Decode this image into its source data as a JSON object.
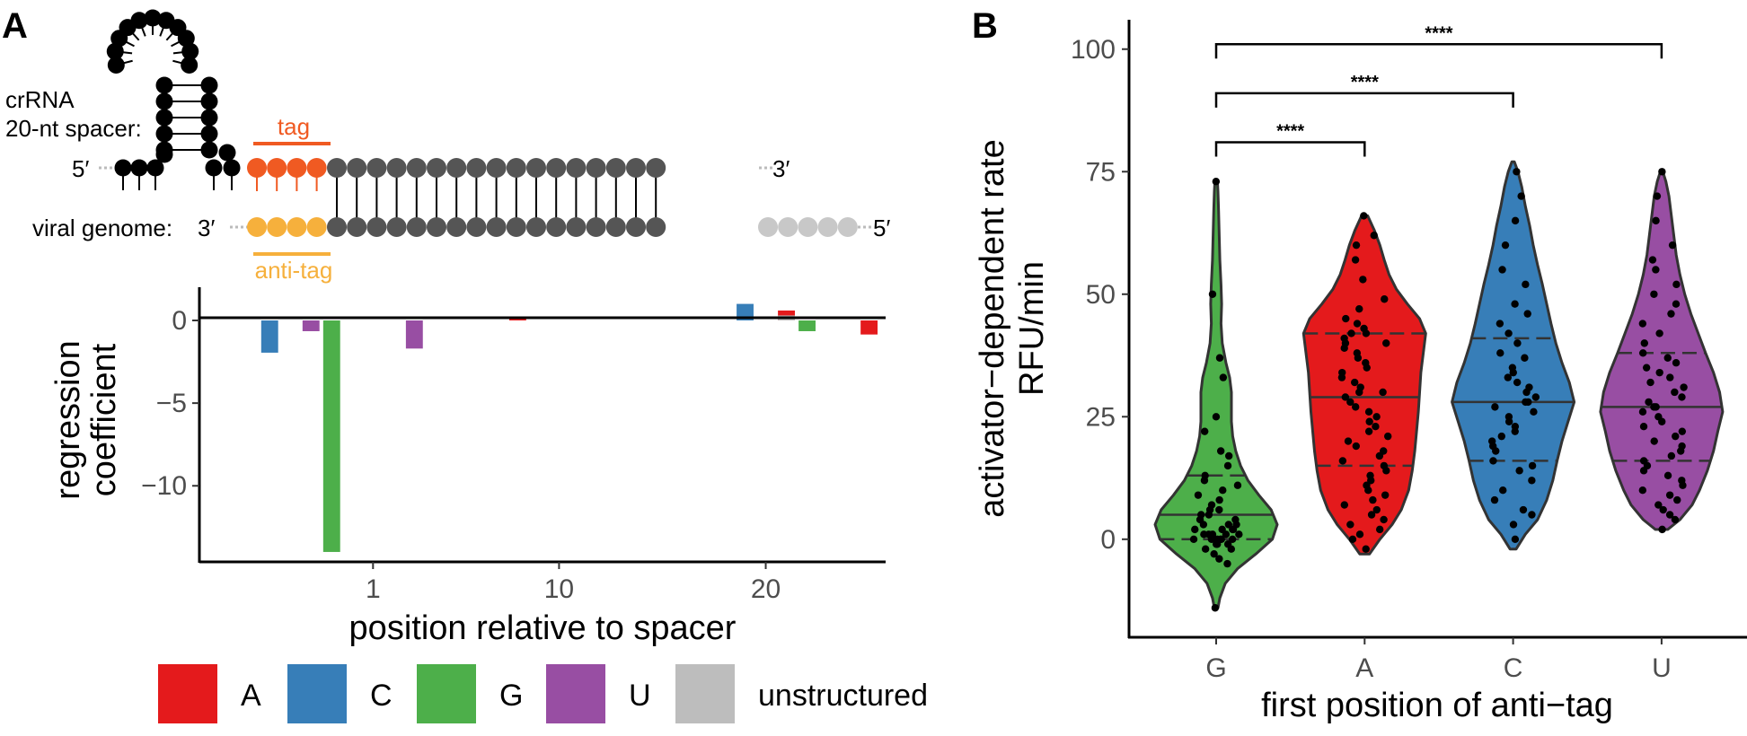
{
  "panel_a": {
    "letter": "A",
    "diagram": {
      "crrna_label_1": "crRNA",
      "crrna_label_2": "20-nt spacer:",
      "five_prime_top": "5′",
      "three_prime_top": "3′",
      "viral_label": "viral genome:",
      "three_prime_bottom": "3′",
      "five_prime_bottom": "5′",
      "tag_label": "tag",
      "anti_tag_label": "anti-tag",
      "colors": {
        "crrna": "#000000",
        "tag": "#F05A22",
        "anti_tag": "#F6B03C",
        "spacer": "#555555",
        "unpaired": "#C8C8C8"
      }
    }
  },
  "panel_b": {
    "letter": "B"
  },
  "chart_data": [
    {
      "type": "bar",
      "xlabel": "position relative to spacer",
      "ylabel_lines": [
        "regression",
        "coefficient"
      ],
      "x_ticks": [
        1,
        10,
        20
      ],
      "y_ticks": [
        0,
        -5,
        -10
      ],
      "ylim": [
        -14.6,
        1.9
      ],
      "xlim": [
        -7.4,
        25.8
      ],
      "bars": [
        {
          "x": -4,
          "value": -1.95,
          "series": "C"
        },
        {
          "x": -2,
          "value": -0.65,
          "series": "U"
        },
        {
          "x": -1,
          "value": -14.0,
          "series": "G"
        },
        {
          "x": 3,
          "value": -1.7,
          "series": "U"
        },
        {
          "x": 8,
          "value": 0.15,
          "series": "A"
        },
        {
          "x": 19,
          "value": 1.0,
          "series": "C"
        },
        {
          "x": 21,
          "value": 0.6,
          "series": "A"
        },
        {
          "x": 21,
          "value": 0.3,
          "series": "unstructured"
        },
        {
          "x": 22,
          "value": -0.65,
          "series": "G"
        },
        {
          "x": 25,
          "value": -0.85,
          "series": "A"
        }
      ],
      "legend": [
        {
          "name": "A",
          "color": "#E41A1C"
        },
        {
          "name": "C",
          "color": "#377EB8"
        },
        {
          "name": "G",
          "color": "#4DAF4A"
        },
        {
          "name": "U",
          "color": "#984EA3"
        },
        {
          "name": "unstructured",
          "color": "#BDBDBD"
        }
      ],
      "legend_placement": "bottom",
      "grid": false
    },
    {
      "type": "violin",
      "xlabel": "first position of anti−tag",
      "ylabel_lines": [
        "activator−dependent rate",
        "RFU/min"
      ],
      "categories": [
        "G",
        "A",
        "C",
        "U"
      ],
      "colors": [
        "#4DAF4A",
        "#E41A1C",
        "#377EB8",
        "#984EA3"
      ],
      "y_ticks": [
        0,
        25,
        50,
        75,
        100
      ],
      "ylim": [
        -20,
        106
      ],
      "grid": false,
      "groups": [
        {
          "name": "G",
          "min": -14,
          "max": 73,
          "q1": 0,
          "median": 5,
          "q3": 13,
          "density": [
            [
              -14,
              0.03
            ],
            [
              -12,
              0.06
            ],
            [
              -9,
              0.15
            ],
            [
              -6,
              0.35
            ],
            [
              -3,
              0.65
            ],
            [
              0,
              0.92
            ],
            [
              3,
              1.0
            ],
            [
              6,
              0.9
            ],
            [
              9,
              0.7
            ],
            [
              12,
              0.52
            ],
            [
              15,
              0.4
            ],
            [
              18,
              0.32
            ],
            [
              21,
              0.27
            ],
            [
              24,
              0.25
            ],
            [
              27,
              0.25
            ],
            [
              30,
              0.25
            ],
            [
              33,
              0.22
            ],
            [
              36,
              0.16
            ],
            [
              40,
              0.1
            ],
            [
              44,
              0.08
            ],
            [
              48,
              0.09
            ],
            [
              52,
              0.08
            ],
            [
              57,
              0.06
            ],
            [
              62,
              0.05
            ],
            [
              67,
              0.04
            ],
            [
              71,
              0.03
            ],
            [
              73,
              0.02
            ]
          ],
          "points": [
            -14,
            -5,
            -4,
            -3,
            -2,
            -2,
            -1,
            -1,
            -1,
            0,
            0,
            0,
            0,
            0,
            0,
            1,
            1,
            1,
            1,
            1,
            2,
            2,
            2,
            2,
            3,
            3,
            3,
            4,
            4,
            5,
            5,
            6,
            6,
            7,
            8,
            9,
            10,
            11,
            12,
            13,
            15,
            17,
            18,
            22,
            25,
            33,
            37,
            50,
            73
          ]
        },
        {
          "name": "A",
          "min": -3,
          "max": 66,
          "q1": 15,
          "median": 29,
          "q3": 42,
          "density": [
            [
              -3,
              0.08
            ],
            [
              0,
              0.25
            ],
            [
              3,
              0.45
            ],
            [
              6,
              0.6
            ],
            [
              10,
              0.72
            ],
            [
              14,
              0.78
            ],
            [
              18,
              0.82
            ],
            [
              22,
              0.85
            ],
            [
              26,
              0.88
            ],
            [
              30,
              0.9
            ],
            [
              34,
              0.92
            ],
            [
              38,
              0.96
            ],
            [
              42,
              1.0
            ],
            [
              45,
              0.9
            ],
            [
              48,
              0.7
            ],
            [
              51,
              0.52
            ],
            [
              54,
              0.4
            ],
            [
              57,
              0.32
            ],
            [
              60,
              0.25
            ],
            [
              63,
              0.16
            ],
            [
              66,
              0.05
            ]
          ],
          "points": [
            -2,
            0,
            1,
            2,
            3,
            4,
            5,
            6,
            7,
            8,
            9,
            10,
            11,
            12,
            13,
            14,
            15,
            16,
            17,
            18,
            19,
            20,
            21,
            22,
            23,
            24,
            25,
            26,
            27,
            28,
            29,
            30,
            30,
            31,
            32,
            33,
            34,
            35,
            36,
            37,
            38,
            39,
            40,
            40,
            41,
            42,
            42,
            43,
            44,
            45,
            47,
            49,
            53,
            57,
            60,
            62,
            66
          ]
        },
        {
          "name": "C",
          "min": -2,
          "max": 77,
          "q1": 16,
          "median": 28,
          "q3": 41,
          "density": [
            [
              -2,
              0.05
            ],
            [
              1,
              0.2
            ],
            [
              4,
              0.4
            ],
            [
              8,
              0.55
            ],
            [
              12,
              0.65
            ],
            [
              16,
              0.72
            ],
            [
              20,
              0.8
            ],
            [
              24,
              0.9
            ],
            [
              28,
              1.0
            ],
            [
              32,
              0.92
            ],
            [
              36,
              0.8
            ],
            [
              40,
              0.7
            ],
            [
              44,
              0.62
            ],
            [
              48,
              0.55
            ],
            [
              52,
              0.48
            ],
            [
              56,
              0.4
            ],
            [
              60,
              0.33
            ],
            [
              64,
              0.27
            ],
            [
              68,
              0.2
            ],
            [
              72,
              0.14
            ],
            [
              75,
              0.08
            ],
            [
              77,
              0.02
            ]
          ],
          "points": [
            0,
            3,
            5,
            6,
            8,
            10,
            12,
            14,
            15,
            16,
            18,
            19,
            20,
            21,
            22,
            23,
            24,
            25,
            26,
            27,
            28,
            28,
            29,
            30,
            31,
            32,
            33,
            34,
            35,
            37,
            38,
            40,
            42,
            44,
            46,
            48,
            52,
            55,
            60,
            65,
            70,
            75
          ]
        },
        {
          "name": "U",
          "min": 2,
          "max": 75,
          "q1": 16,
          "median": 27,
          "q3": 38,
          "density": [
            [
              2,
              0.1
            ],
            [
              4,
              0.3
            ],
            [
              7,
              0.5
            ],
            [
              10,
              0.62
            ],
            [
              14,
              0.75
            ],
            [
              18,
              0.85
            ],
            [
              22,
              0.92
            ],
            [
              26,
              1.0
            ],
            [
              30,
              0.95
            ],
            [
              34,
              0.85
            ],
            [
              38,
              0.72
            ],
            [
              42,
              0.6
            ],
            [
              46,
              0.48
            ],
            [
              50,
              0.38
            ],
            [
              54,
              0.3
            ],
            [
              58,
              0.24
            ],
            [
              62,
              0.2
            ],
            [
              66,
              0.16
            ],
            [
              70,
              0.12
            ],
            [
              73,
              0.07
            ],
            [
              75,
              0.02
            ]
          ],
          "points": [
            2,
            4,
            5,
            6,
            7,
            8,
            9,
            10,
            11,
            12,
            13,
            14,
            15,
            16,
            17,
            18,
            19,
            20,
            21,
            22,
            23,
            24,
            25,
            26,
            27,
            27,
            28,
            29,
            30,
            31,
            32,
            33,
            34,
            35,
            36,
            37,
            38,
            40,
            42,
            44,
            46,
            48,
            50,
            52,
            55,
            57,
            60,
            65,
            70,
            75
          ]
        }
      ],
      "significance": [
        {
          "from": "G",
          "to": "A",
          "y": 81,
          "label": "****"
        },
        {
          "from": "G",
          "to": "C",
          "y": 91,
          "label": "****"
        },
        {
          "from": "G",
          "to": "U",
          "y": 101,
          "label": "****"
        }
      ]
    }
  ]
}
